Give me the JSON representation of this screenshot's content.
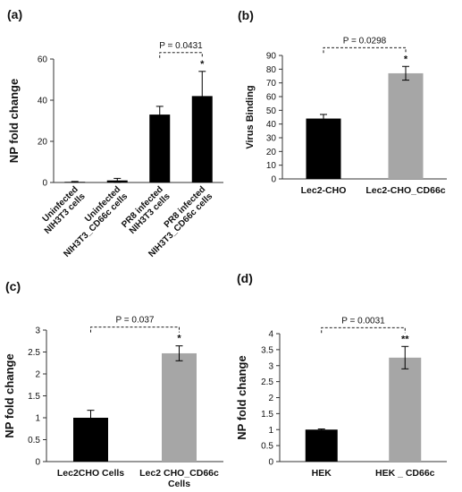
{
  "chart_data": [
    {
      "panel": "(a)",
      "type": "bar",
      "categories": [
        "Uninfected NIH3T3 cells",
        "Uninfected NIH3T3_CD66c cells",
        "PR8 infected NIH3T3 cells",
        "PR8 infected NIH3T3_CD66c cells"
      ],
      "category_lines": [
        [
          "Uninfected",
          "NIH3T3 cells"
        ],
        [
          "Uninfected",
          "NIH3T3_CD66c cells"
        ],
        [
          "PR8 infected",
          "NIH3T3 cells"
        ],
        [
          "PR8 infected",
          "NIH3T3_CD66c cells"
        ]
      ],
      "values": [
        0.3,
        1.0,
        33,
        42
      ],
      "errors": [
        0.2,
        1.0,
        4,
        12
      ],
      "colors": [
        "#000000",
        "#000000",
        "#000000",
        "#000000"
      ],
      "ylabel": "NP fold change",
      "ylim": [
        0,
        60
      ],
      "yticks": [
        0,
        20,
        40,
        60
      ],
      "significance": {
        "text": "P = 0.0431",
        "from": 2,
        "to": 3,
        "star": "*",
        "star_on": 3
      }
    },
    {
      "panel": "(b)",
      "type": "bar",
      "categories": [
        "Lec2-CHO",
        "Lec2-CHO_CD66c"
      ],
      "category_lines": [
        [
          "Lec2-CHO"
        ],
        [
          "Lec2-CHO_CD66c"
        ]
      ],
      "values": [
        44,
        77
      ],
      "errors": [
        3,
        5
      ],
      "colors": [
        "#000000",
        "#a6a6a6"
      ],
      "ylabel": "Virus Binding",
      "ylim": [
        0,
        90
      ],
      "yticks": [
        0,
        10,
        20,
        30,
        40,
        50,
        60,
        70,
        80,
        90
      ],
      "significance": {
        "text": "P = 0.0298",
        "from": 0,
        "to": 1,
        "star": "*",
        "star_on": 1
      }
    },
    {
      "panel": "(c)",
      "type": "bar",
      "categories": [
        "Lec2CHO Cells",
        "Lec2 CHO_CD66c Cells"
      ],
      "category_lines": [
        [
          "Lec2CHO Cells"
        ],
        [
          "Lec2 CHO_CD66c",
          "Cells"
        ]
      ],
      "values": [
        1.0,
        2.47
      ],
      "errors": [
        0.17,
        0.17
      ],
      "colors": [
        "#000000",
        "#a6a6a6"
      ],
      "ylabel": "NP fold change",
      "ylim": [
        0,
        3
      ],
      "yticks": [
        0,
        0.5,
        1,
        1.5,
        2,
        2.5,
        3
      ],
      "significance": {
        "text": "P = 0.037",
        "from": 0,
        "to": 1,
        "star": "*",
        "star_on": 1
      }
    },
    {
      "panel": "(d)",
      "type": "bar",
      "categories": [
        "HEK",
        "HEK _ CD66c"
      ],
      "category_lines": [
        [
          "HEK"
        ],
        [
          "HEK _ CD66c"
        ]
      ],
      "values": [
        1.0,
        3.25
      ],
      "errors": [
        0.02,
        0.35
      ],
      "colors": [
        "#000000",
        "#a6a6a6"
      ],
      "ylabel": "NP fold change",
      "ylim": [
        0,
        4
      ],
      "yticks": [
        0,
        0.5,
        1,
        1.5,
        2,
        2.5,
        3,
        3.5,
        4
      ],
      "significance": {
        "text": "P = 0.0031",
        "from": 0,
        "to": 1,
        "star": "**",
        "star_on": 1
      }
    }
  ]
}
